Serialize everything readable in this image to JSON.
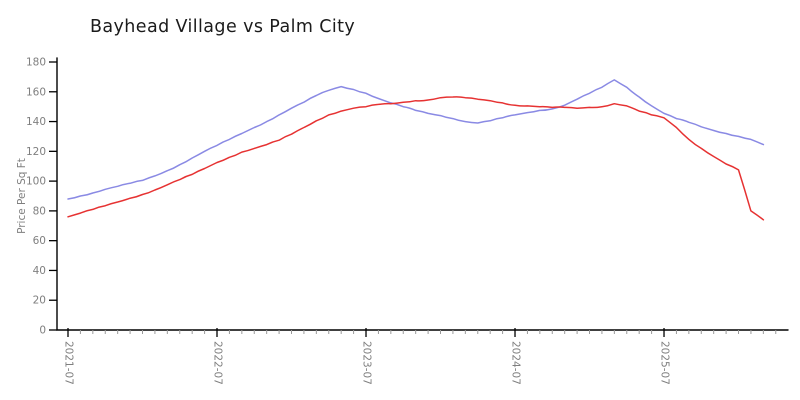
{
  "title": "Bayhead Village vs Palm City",
  "colors": {
    "blue_series": "#8a8ae4",
    "red_series": "#e63232",
    "axis": "#000000",
    "minor_tick": "#999999",
    "tick_label": "#7f7f7f",
    "title_text": "#1b1b1b"
  },
  "chart_data": {
    "type": "line",
    "title": "Bayhead Village vs Palm City",
    "xlabel": "",
    "ylabel": "Price Per Sq Ft",
    "ylim": [
      0,
      180
    ],
    "y_ticks": [
      0,
      20,
      40,
      60,
      80,
      100,
      120,
      140,
      160,
      180
    ],
    "x_major_tick_labels": [
      "2021-07",
      "2022-07",
      "2023-07",
      "2024-07",
      "2025-07"
    ],
    "x_minor_ticks": "monthly",
    "grid": false,
    "legend_position": "none",
    "style": "xkcd-sketch",
    "x": [
      "2021-07",
      "2021-08",
      "2021-09",
      "2021-10",
      "2021-11",
      "2021-12",
      "2022-01",
      "2022-02",
      "2022-03",
      "2022-04",
      "2022-05",
      "2022-06",
      "2022-07",
      "2022-08",
      "2022-09",
      "2022-10",
      "2022-11",
      "2022-12",
      "2023-01",
      "2023-02",
      "2023-03",
      "2023-04",
      "2023-05",
      "2023-06",
      "2023-07",
      "2023-08",
      "2023-09",
      "2023-10",
      "2023-11",
      "2023-12",
      "2024-01",
      "2024-02",
      "2024-03",
      "2024-04",
      "2024-05",
      "2024-06",
      "2024-07",
      "2024-08",
      "2024-09",
      "2024-10",
      "2024-11",
      "2024-12",
      "2025-01",
      "2025-02",
      "2025-03",
      "2025-04",
      "2025-05",
      "2025-06",
      "2025-07",
      "2025-08",
      "2025-09",
      "2025-10",
      "2025-11",
      "2025-12",
      "2026-01",
      "2026-02",
      "2026-03"
    ],
    "series": [
      {
        "name": "Bayhead Village",
        "color": "#8a8ae4",
        "values": [
          88,
          90,
          92,
          94.5,
          96.5,
          98.5,
          100.5,
          103.5,
          107,
          111,
          115.5,
          120,
          124,
          128,
          132,
          136,
          140,
          144.5,
          149,
          153,
          157.5,
          161,
          163.5,
          161.5,
          159,
          155.5,
          152.5,
          150,
          147.5,
          145.5,
          144,
          142,
          140,
          139,
          140.5,
          142.5,
          144.5,
          146,
          147.5,
          148.5,
          151,
          155,
          159,
          163,
          168,
          163,
          156.5,
          150.5,
          145.5,
          142,
          139.5,
          136.5,
          134,
          132,
          130,
          128,
          124.5
        ]
      },
      {
        "name": "Palm City",
        "color": "#e63232",
        "values": [
          76,
          78.5,
          81,
          83.5,
          86,
          88.5,
          91,
          94,
          97.5,
          101,
          104.5,
          108.5,
          112.5,
          116,
          119.5,
          122,
          124.5,
          127.5,
          131.5,
          136,
          140.5,
          144.5,
          147,
          149,
          150,
          151.5,
          152,
          153,
          154,
          154.5,
          156,
          156.5,
          156,
          155,
          154,
          152.5,
          151,
          150.5,
          150,
          149.5,
          149.5,
          149,
          149.5,
          150,
          152,
          150.5,
          147,
          144.5,
          142.5,
          136,
          128,
          122,
          116.5,
          111.5,
          107.5,
          80,
          74
        ]
      }
    ]
  }
}
